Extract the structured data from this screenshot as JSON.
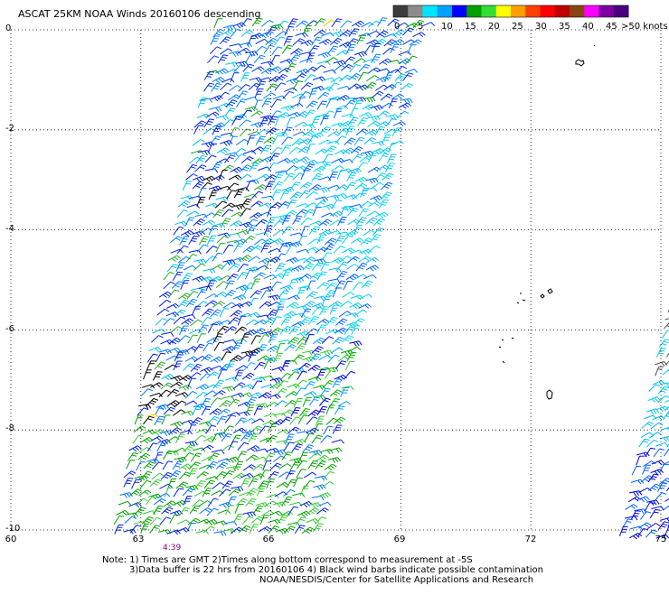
{
  "title": "ASCAT 25KM NOAA Winds 20160106 descending",
  "legend": {
    "labels": [
      "0",
      "5",
      "10",
      "15",
      "20",
      "25",
      "30",
      "35",
      "40",
      "45",
      ">50 knots"
    ],
    "colors": [
      "#3c3c3c",
      "#8c8c8c",
      "#00e5ff",
      "#00a0ff",
      "#0000ff",
      "#00a000",
      "#33dd33",
      "#ffff00",
      "#ffa000",
      "#ff4000",
      "#ff0000",
      "#c00000",
      "#8b4513",
      "#ff00ff",
      "#8000a0",
      "#4b0082"
    ]
  },
  "map": {
    "y_ticks": [
      "0",
      "-2",
      "-4",
      "-6",
      "-8",
      "-10"
    ],
    "x_ticks": [
      "60",
      "63",
      "66",
      "69",
      "72",
      "75"
    ],
    "lat_range": [
      -10,
      0
    ],
    "lon_range": [
      60,
      75
    ],
    "pass_time": "4:39"
  },
  "notes": {
    "line1": "Note: 1) Times are GMT 2)Times along bottom correspond to measurement at -5S",
    "line2": "3)Data buffer is 22 hrs from 20160106 4) Black wind barbs indicate possible contamination",
    "line3": "NOAA/NESDIS/Center for Satellite Applications and Research"
  }
}
